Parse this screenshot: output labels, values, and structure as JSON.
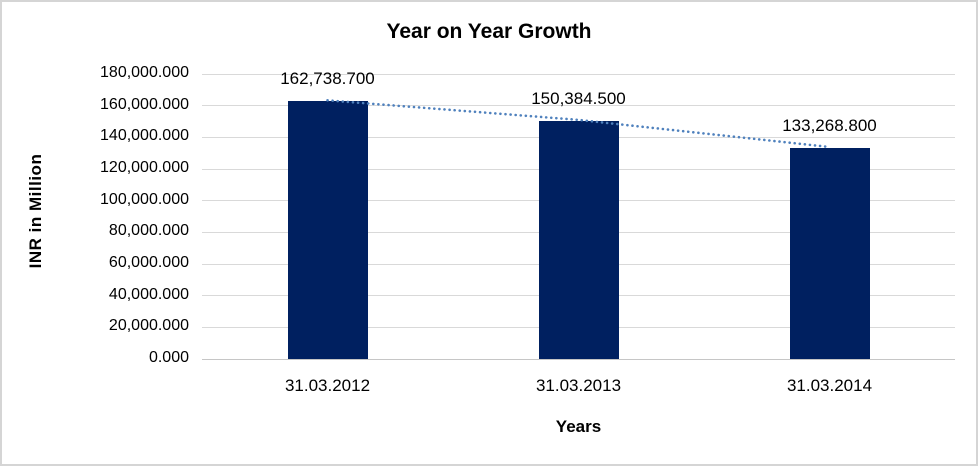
{
  "chart_data": {
    "type": "bar",
    "title": "Year on Year Growth",
    "xlabel": "Years",
    "ylabel": "INR in Million",
    "categories": [
      "31.03.2012",
      "31.03.2013",
      "31.03.2014"
    ],
    "values": [
      162738.7,
      150384.5,
      133268.8
    ],
    "data_labels": [
      "162,738.700",
      "150,384.500",
      "133,268.800"
    ],
    "y_ticks": [
      "180,000.000",
      "160,000.000",
      "140,000.000",
      "120,000.000",
      "100,000.000",
      "80,000.000",
      "60,000.000",
      "40,000.000",
      "20,000.000",
      "0.000"
    ],
    "ylim": [
      0,
      180000
    ],
    "grid": true,
    "legend": false,
    "trendline": true,
    "colors": {
      "bar": "#002060",
      "trendline": "#4f81bd",
      "gridline": "#d9d9d9",
      "text": "#000000",
      "frame_border": "#d5d5d5",
      "background": "#ffffff"
    }
  }
}
